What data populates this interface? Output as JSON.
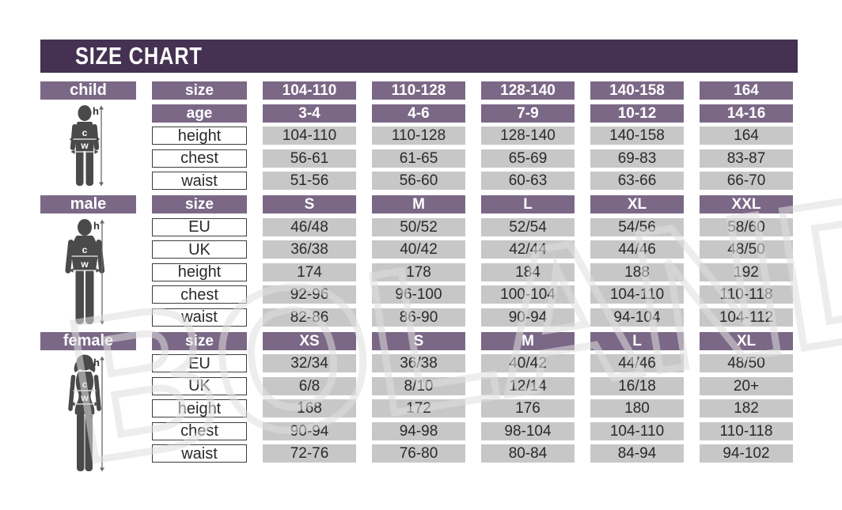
{
  "title": "SIZE CHART",
  "watermark_text": "BOLAND",
  "figure_annotations": {
    "height": "h",
    "chest": "c",
    "waist": "w"
  },
  "colors": {
    "title_bar_bg": "#453151",
    "header_cell_bg": "#7b6886",
    "data_cell_bg": "#c8c7c7",
    "label_cell_bg": "#ffffff",
    "label_cell_border": "#3c3c3c",
    "text_dark": "#2a2a2a",
    "text_light": "#ffffff",
    "silhouette": "#4a4a4b"
  },
  "chart_data": {
    "type": "table",
    "title": "SIZE CHART",
    "sections": [
      {
        "id": "child",
        "label": "child",
        "rows": [
          {
            "label": "size",
            "header": true,
            "values": [
              "104-110",
              "110-128",
              "128-140",
              "140-158",
              "164"
            ]
          },
          {
            "label": "age",
            "header": true,
            "values": [
              "3-4",
              "4-6",
              "7-9",
              "10-12",
              "14-16"
            ]
          },
          {
            "label": "height",
            "header": false,
            "values": [
              "104-110",
              "110-128",
              "128-140",
              "140-158",
              "164"
            ]
          },
          {
            "label": "chest",
            "header": false,
            "values": [
              "56-61",
              "61-65",
              "65-69",
              "69-83",
              "83-87"
            ]
          },
          {
            "label": "waist",
            "header": false,
            "values": [
              "51-56",
              "56-60",
              "60-63",
              "63-66",
              "66-70"
            ]
          }
        ]
      },
      {
        "id": "male",
        "label": "male",
        "rows": [
          {
            "label": "size",
            "header": true,
            "values": [
              "S",
              "M",
              "L",
              "XL",
              "XXL"
            ]
          },
          {
            "label": "EU",
            "header": false,
            "values": [
              "46/48",
              "50/52",
              "52/54",
              "54/56",
              "58/60"
            ]
          },
          {
            "label": "UK",
            "header": false,
            "values": [
              "36/38",
              "40/42",
              "42/44",
              "44/46",
              "48/50"
            ]
          },
          {
            "label": "height",
            "header": false,
            "values": [
              "174",
              "178",
              "184",
              "188",
              "192"
            ]
          },
          {
            "label": "chest",
            "header": false,
            "values": [
              "92-96",
              "96-100",
              "100-104",
              "104-110",
              "110-118"
            ]
          },
          {
            "label": "waist",
            "header": false,
            "values": [
              "82-86",
              "86-90",
              "90-94",
              "94-104",
              "104-112"
            ]
          }
        ]
      },
      {
        "id": "female",
        "label": "female",
        "rows": [
          {
            "label": "size",
            "header": true,
            "values": [
              "XS",
              "S",
              "M",
              "L",
              "XL"
            ]
          },
          {
            "label": "EU",
            "header": false,
            "values": [
              "32/34",
              "36/38",
              "40/42",
              "44/46",
              "48/50"
            ]
          },
          {
            "label": "UK",
            "header": false,
            "values": [
              "6/8",
              "8/10",
              "12/14",
              "16/18",
              "20+"
            ]
          },
          {
            "label": "height",
            "header": false,
            "values": [
              "168",
              "172",
              "176",
              "180",
              "182"
            ]
          },
          {
            "label": "chest",
            "header": false,
            "values": [
              "90-94",
              "94-98",
              "98-104",
              "104-110",
              "110-118"
            ]
          },
          {
            "label": "waist",
            "header": false,
            "values": [
              "72-76",
              "76-80",
              "80-84",
              "84-94",
              "94-102"
            ]
          }
        ]
      }
    ]
  }
}
